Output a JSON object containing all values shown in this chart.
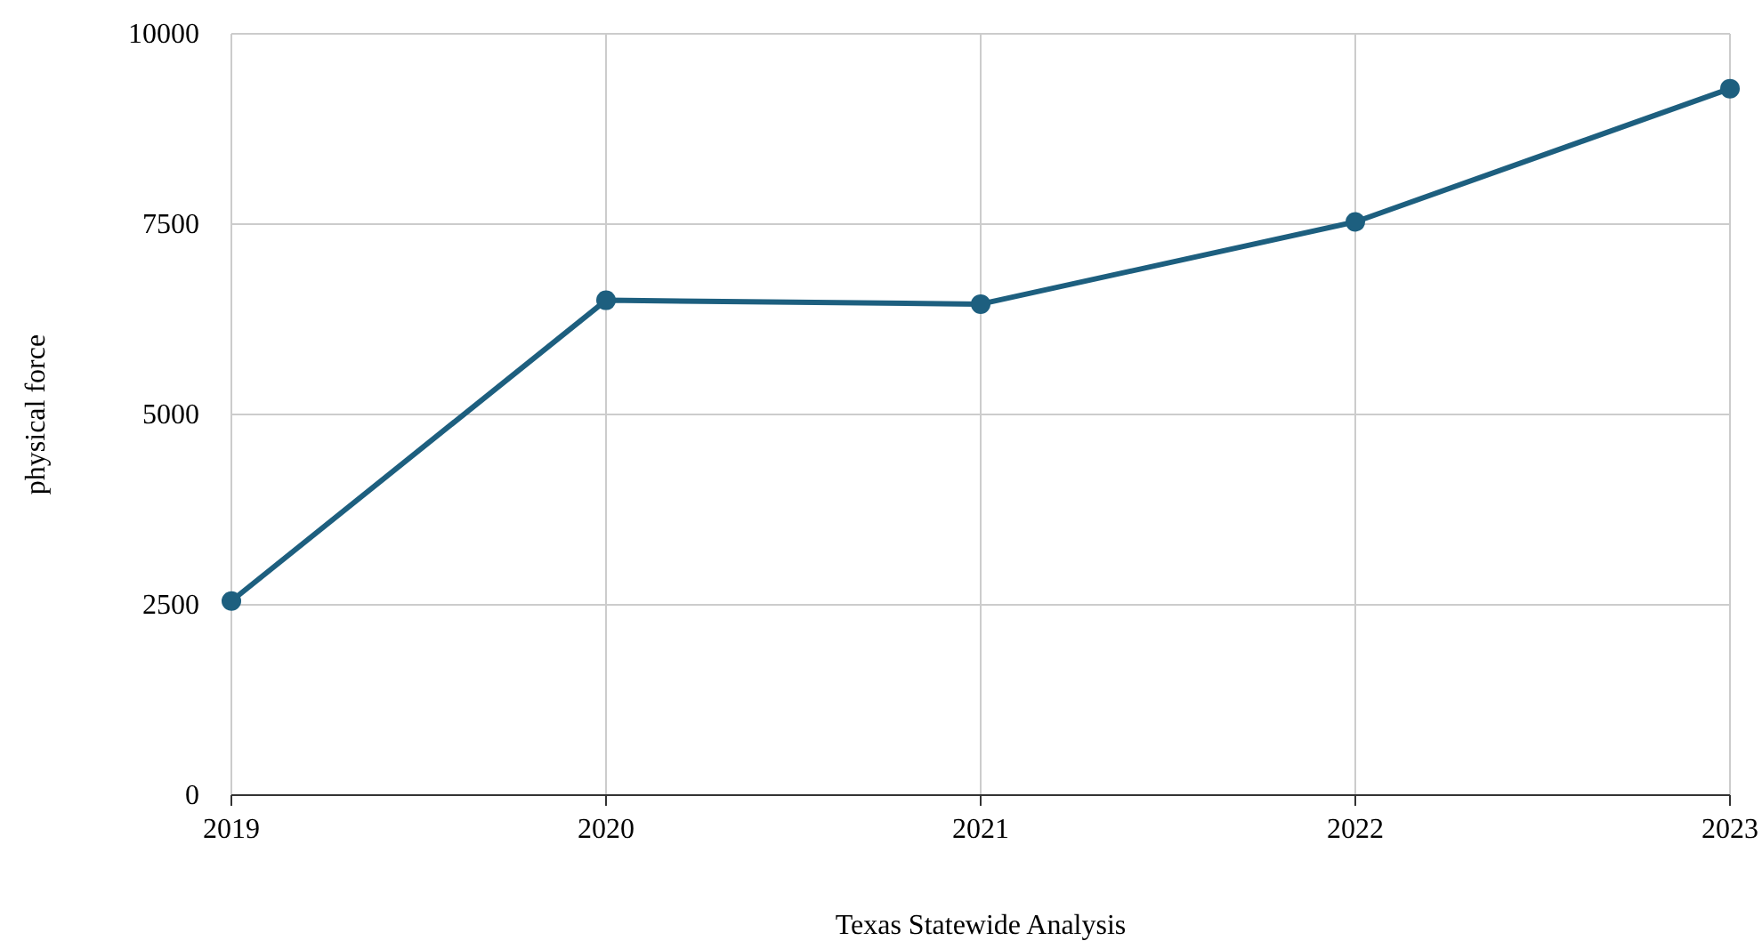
{
  "chart_data": {
    "type": "line",
    "xlabel": "Texas Statewide Analysis",
    "ylabel": "physical force",
    "x": [
      2019,
      2020,
      2021,
      2022,
      2023
    ],
    "series": [
      {
        "color": "#1d5f7f",
        "values": [
          2550,
          6500,
          6450,
          7530,
          9280
        ]
      }
    ],
    "xlim": [
      2019,
      2023
    ],
    "xticks": [
      2019,
      2020,
      2021,
      2022,
      2023
    ],
    "ylim": [
      0,
      10000
    ],
    "yticks": [
      0,
      2500,
      5000,
      7500,
      10000
    ],
    "grid": true,
    "marker": "circle",
    "line_style": "solid"
  }
}
